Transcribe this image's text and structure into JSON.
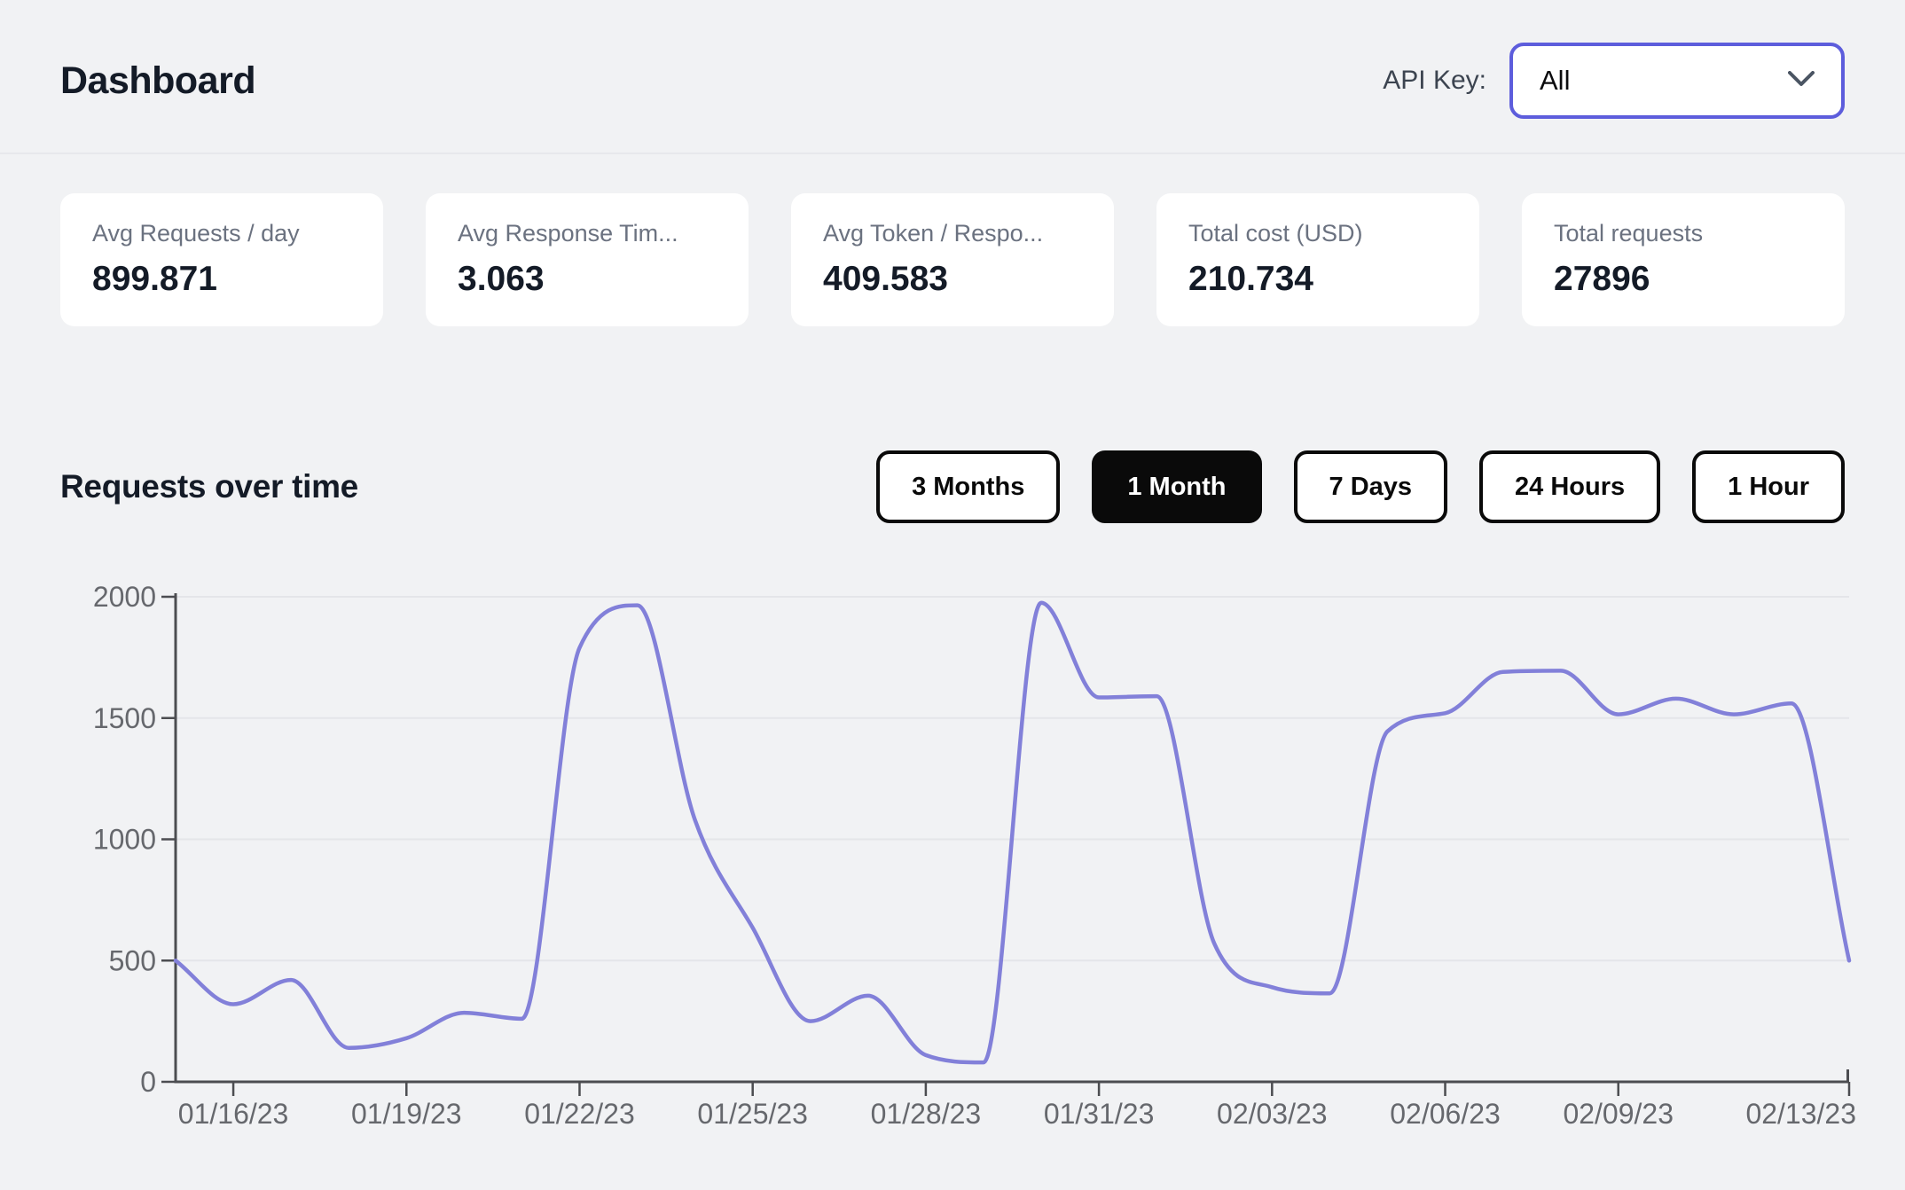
{
  "header": {
    "title": "Dashboard",
    "api_key_label": "API Key:",
    "api_key_value": "All"
  },
  "stats": [
    {
      "label": "Avg Requests / day",
      "value": "899.871"
    },
    {
      "label": "Avg Response Tim...",
      "value": "3.063"
    },
    {
      "label": "Avg Token / Respo...",
      "value": "409.583"
    },
    {
      "label": "Total cost (USD)",
      "value": "210.734"
    },
    {
      "label": "Total requests",
      "value": "27896"
    }
  ],
  "section": {
    "title": "Requests over time",
    "range_buttons": [
      {
        "label": "3 Months",
        "active": false
      },
      {
        "label": "1 Month",
        "active": true
      },
      {
        "label": "7 Days",
        "active": false
      },
      {
        "label": "24 Hours",
        "active": false
      },
      {
        "label": "1 Hour",
        "active": false
      }
    ]
  },
  "chart_data": {
    "type": "line",
    "title": "Requests over time",
    "x": [
      "01/15/23",
      "01/16/23",
      "01/17/23",
      "01/18/23",
      "01/19/23",
      "01/20/23",
      "01/21/23",
      "01/22/23",
      "01/23/23",
      "01/24/23",
      "01/25/23",
      "01/26/23",
      "01/27/23",
      "01/28/23",
      "01/29/23",
      "01/30/23",
      "01/31/23",
      "02/01/23",
      "02/02/23",
      "02/03/23",
      "02/04/23",
      "02/05/23",
      "02/06/23",
      "02/07/23",
      "02/08/23",
      "02/09/23",
      "02/10/23",
      "02/11/23",
      "02/12/23",
      "02/13/23"
    ],
    "values": [
      500,
      320,
      420,
      140,
      180,
      285,
      260,
      1790,
      1965,
      1080,
      635,
      250,
      355,
      110,
      80,
      1975,
      1585,
      1590,
      570,
      390,
      365,
      1445,
      1520,
      1690,
      1695,
      1515,
      1580,
      1515,
      1560,
      500
    ],
    "x_tick_labels": [
      "01/16/23",
      "01/19/23",
      "01/22/23",
      "01/25/23",
      "01/28/23",
      "01/31/23",
      "02/03/23",
      "02/06/23",
      "02/09/23",
      "02/13/23"
    ],
    "y_ticks": [
      0,
      500,
      1000,
      1500,
      2000
    ],
    "ylim": [
      0,
      2000
    ],
    "xlabel": "",
    "ylabel": "",
    "grid": true,
    "legend": "none",
    "line_color": "#8280d9",
    "grid_color": "#e4e5e9",
    "axis_color": "#4c4d51",
    "tick_label_color": "#66686d"
  }
}
